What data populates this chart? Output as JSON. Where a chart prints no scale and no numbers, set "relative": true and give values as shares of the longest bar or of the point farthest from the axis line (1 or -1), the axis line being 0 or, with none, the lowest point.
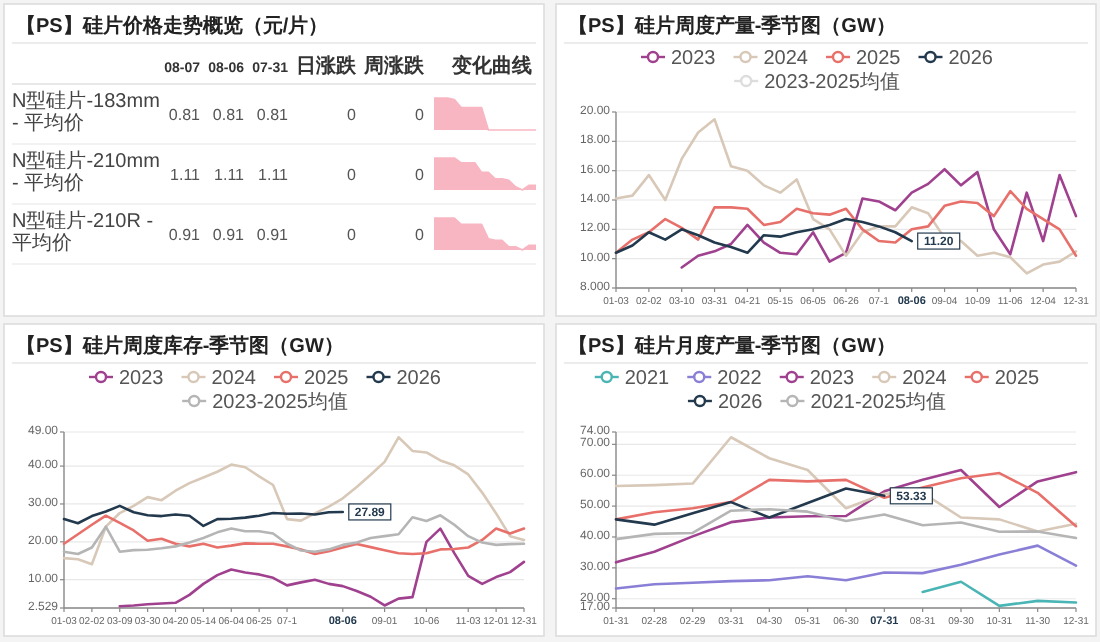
{
  "chart_data": [
    {
      "type": "other",
      "title": "【PS】硅片价格走势概览（元/片）",
      "categories": [
        "N型硅片-183mm - 平均价",
        "N型硅片-210mm - 平均价",
        "N型硅片-210R - 平均价"
      ],
      "series": [
        {
          "name": "08-07",
          "values": [
            0.81,
            1.11,
            0.91
          ]
        },
        {
          "name": "08-06",
          "values": [
            0.81,
            1.11,
            0.91
          ]
        },
        {
          "name": "07-31",
          "values": [
            0.81,
            1.11,
            0.91
          ]
        },
        {
          "name": "日涨跌",
          "values": [
            0,
            0,
            0
          ]
        },
        {
          "name": "周涨跌",
          "values": [
            0,
            0,
            0
          ]
        }
      ],
      "annotations": [
        "变化曲线"
      ],
      "data_labels": true
    },
    {
      "type": "area",
      "relative": true,
      "color": "#f7b6c2",
      "categories": [
        null,
        null,
        null,
        null,
        null,
        null,
        null,
        null,
        null,
        null,
        null,
        null,
        null,
        null,
        null,
        null
      ],
      "values": [
        1,
        1,
        1,
        0.95,
        0.7,
        0.7,
        0.7,
        0.7,
        0,
        0,
        0,
        0,
        0,
        0,
        0,
        0
      ]
    },
    {
      "type": "area",
      "relative": true,
      "color": "#f7b6c2",
      "categories": [
        null,
        null,
        null,
        null,
        null,
        null,
        null,
        null,
        null,
        null,
        null,
        null,
        null,
        null,
        null,
        null
      ],
      "values": [
        1,
        1,
        1,
        1,
        0.85,
        0.85,
        0.85,
        0.55,
        0.55,
        0.35,
        0.35,
        0.3,
        0.1,
        0,
        0.15,
        0.15
      ]
    },
    {
      "type": "area",
      "relative": true,
      "color": "#f7b6c2",
      "categories": [
        null,
        null,
        null,
        null,
        null,
        null,
        null,
        null,
        null,
        null,
        null,
        null,
        null,
        null,
        null,
        null
      ],
      "values": [
        1,
        1,
        1,
        1,
        0.8,
        0.8,
        0.8,
        0.8,
        0.35,
        0.3,
        0.3,
        0.1,
        0.1,
        0,
        0.15,
        0.15
      ]
    },
    {
      "type": "line",
      "title": "【PS】硅片周度产量-季节图（GW）",
      "grid": "y",
      "legend": "top",
      "categories": [
        "01-03",
        null,
        "02-02",
        null,
        "03-10",
        null,
        "03-31",
        null,
        "04-21",
        null,
        "05-15",
        null,
        "06-05",
        null,
        "06-26",
        null,
        "07-1",
        null,
        "08-06",
        null,
        "09-04",
        null,
        "10-09",
        null,
        "11-06",
        null,
        "12-04",
        null,
        "12-31"
      ],
      "ylim": [
        8,
        20
      ],
      "yticks": [
        {
          "value": 8,
          "label": "8.000"
        },
        {
          "value": 10,
          "label": "10.00"
        },
        {
          "value": 12,
          "label": "12.00"
        },
        {
          "value": 14,
          "label": "14.00"
        },
        {
          "value": 16,
          "label": "16.00"
        },
        {
          "value": 18,
          "label": "18.00"
        },
        {
          "value": 20,
          "label": "20.00"
        }
      ],
      "series": [
        {
          "name": "2023",
          "color": "#a0418f",
          "values": [
            null,
            null,
            null,
            null,
            9.4,
            10.2,
            10.5,
            11.0,
            12.3,
            11.1,
            10.4,
            10.3,
            11.8,
            9.8,
            10.4,
            14.1,
            13.9,
            13.3,
            14.5,
            15.1,
            16.1,
            15.0,
            15.9,
            12.0,
            10.3,
            14.5,
            11.2,
            15.7,
            12.9
          ]
        },
        {
          "name": "2024",
          "color": "#d8c8b8",
          "values": [
            14.1,
            14.3,
            15.7,
            14.0,
            16.8,
            18.6,
            19.5,
            16.3,
            16.0,
            15.0,
            14.5,
            15.4,
            12.7,
            12.0,
            10.2,
            11.8,
            12.2,
            12.2,
            13.5,
            13.1,
            11.4,
            11.2,
            10.2,
            10.4,
            10.1,
            9.0,
            9.6,
            9.8,
            10.5
          ]
        },
        {
          "name": "2025",
          "color": "#e8706a",
          "values": [
            10.4,
            11.3,
            11.8,
            12.7,
            12.1,
            11.3,
            13.5,
            13.5,
            13.4,
            12.3,
            12.5,
            13.4,
            13.1,
            13.0,
            13.4,
            12.0,
            11.2,
            11.1,
            12.0,
            12.2,
            13.6,
            13.9,
            13.8,
            12.9,
            14.6,
            13.4,
            12.7,
            12.0,
            10.2
          ]
        },
        {
          "name": "2026",
          "color": "#23394d",
          "values": [
            10.4,
            10.9,
            11.8,
            11.3,
            12.0,
            11.6,
            11.1,
            10.8,
            10.4,
            11.6,
            11.5,
            11.8,
            12.0,
            12.3,
            12.7,
            12.5,
            12.2,
            11.8,
            11.2,
            null,
            null,
            null,
            null,
            null,
            null,
            null,
            null,
            null,
            null
          ]
        },
        {
          "name": "2023-2025均值",
          "color": "#dddddd",
          "values": [
            null,
            null,
            null,
            null,
            null,
            null,
            null,
            null,
            null,
            null,
            null,
            null,
            null,
            null,
            null,
            null,
            null,
            null,
            null,
            null,
            null,
            null,
            null,
            null,
            null,
            null,
            null,
            null,
            null
          ]
        }
      ],
      "annotations": [
        {
          "text": "11.20",
          "x": "08-06",
          "y": 11.2
        }
      ]
    },
    {
      "type": "line",
      "title": "【PS】硅片周度库存-季节图（GW）",
      "grid": "y",
      "legend": "top",
      "categories": [
        "01-03",
        null,
        "02-02",
        null,
        "03-09",
        null,
        "03-30",
        null,
        "04-20",
        null,
        "05-14",
        null,
        "06-04",
        null,
        "06-25",
        null,
        "07-1",
        null,
        null,
        null,
        "08-06",
        null,
        null,
        "09-01",
        null,
        null,
        "10-06",
        null,
        null,
        "11-03",
        null,
        "12-01",
        null,
        "12-31"
      ],
      "ylim": [
        2.529,
        49
      ],
      "yticks": [
        {
          "value": 2.529,
          "label": "2.529"
        },
        {
          "value": 10,
          "label": "10.00"
        },
        {
          "value": 20,
          "label": "20.00"
        },
        {
          "value": 30,
          "label": "30.00"
        },
        {
          "value": 40,
          "label": "40.00"
        },
        {
          "value": 49,
          "label": "49.00"
        }
      ],
      "series": [
        {
          "name": "2023",
          "color": "#a0418f",
          "values": [
            null,
            null,
            null,
            null,
            3.0,
            3.2,
            3.5,
            3.7,
            3.9,
            6.0,
            8.9,
            11.2,
            12.7,
            11.9,
            11.4,
            10.5,
            8.5,
            9.3,
            10.0,
            8.9,
            8.3,
            7.0,
            5.5,
            3.2,
            5.0,
            5.4,
            20.0,
            23.5,
            17.0,
            11.0,
            8.9,
            10.7,
            12.0,
            14.7
          ]
        },
        {
          "name": "2024",
          "color": "#d8c8b8",
          "values": [
            15.7,
            15.4,
            14.1,
            24.0,
            27.6,
            29.5,
            31.8,
            31.0,
            33.5,
            35.5,
            37.0,
            38.5,
            40.4,
            39.7,
            37.3,
            35.0,
            26.0,
            25.6,
            27.5,
            29.3,
            31.5,
            34.5,
            37.7,
            41.1,
            47.6,
            44.0,
            43.6,
            41.5,
            40.2,
            37.8,
            33.0,
            27.5,
            21.5,
            20.5
          ]
        },
        {
          "name": "2025",
          "color": "#e8706a",
          "values": [
            19.5,
            22.0,
            24.5,
            26.9,
            25.0,
            23.0,
            20.3,
            20.8,
            19.5,
            18.8,
            19.5,
            18.5,
            19.0,
            19.6,
            19.5,
            19.5,
            18.8,
            18.0,
            16.8,
            17.5,
            18.5,
            19.4,
            18.6,
            17.8,
            17.0,
            16.8,
            17.0,
            18.0,
            18.1,
            18.5,
            20.5,
            23.5,
            22.2,
            23.5
          ]
        },
        {
          "name": "2026",
          "color": "#23394d",
          "values": [
            26.0,
            24.9,
            26.8,
            28.0,
            29.5,
            27.8,
            27.0,
            26.8,
            27.2,
            26.9,
            24.2,
            26.0,
            26.1,
            26.4,
            26.9,
            27.6,
            27.4,
            27.5,
            27.2,
            27.8,
            27.89,
            null,
            null,
            null,
            null,
            null,
            null,
            null,
            null,
            null,
            null,
            null,
            null,
            null
          ]
        },
        {
          "name": "2023-2025均值",
          "color": "#b5b5b5",
          "values": [
            17.4,
            16.8,
            18.5,
            24.0,
            17.4,
            17.8,
            17.9,
            18.3,
            18.8,
            19.8,
            21.0,
            22.5,
            23.5,
            22.8,
            22.8,
            22.2,
            19.5,
            17.7,
            17.4,
            18.0,
            19.2,
            19.8,
            21.0,
            21.5,
            22.0,
            26.5,
            25.5,
            27.0,
            24.5,
            21.5,
            19.8,
            19.2,
            19.4,
            19.5
          ]
        }
      ],
      "annotations": [
        {
          "text": "27.89",
          "x": "08-06",
          "y": 27.89
        }
      ]
    },
    {
      "type": "line",
      "title": "【PS】硅片月度产量-季节图（GW）",
      "grid": "y",
      "legend": "top",
      "categories": [
        "01-31",
        "02-28",
        "02-29",
        "03-31",
        "04-30",
        "05-31",
        "06-30",
        "07-31",
        "08-31",
        "09-30",
        "10-31",
        "11-30",
        "12-31"
      ],
      "ylim": [
        17,
        74
      ],
      "yticks": [
        {
          "value": 17,
          "label": "17.00"
        },
        {
          "value": 20,
          "label": "20.00"
        },
        {
          "value": 30,
          "label": "30.00"
        },
        {
          "value": 40,
          "label": "40.00"
        },
        {
          "value": 50,
          "label": "50.00"
        },
        {
          "value": 60,
          "label": "60.00"
        },
        {
          "value": 70,
          "label": "70.00"
        },
        {
          "value": 74,
          "label": "74.00"
        }
      ],
      "series": [
        {
          "name": "2021",
          "color": "#4bb5b5",
          "values": [
            null,
            null,
            null,
            null,
            null,
            null,
            null,
            null,
            22.2,
            25.5,
            17.7,
            19.3,
            18.8
          ]
        },
        {
          "name": "2022",
          "color": "#8a7fd6",
          "values": [
            23.3,
            24.7,
            25.2,
            25.7,
            26.0,
            27.3,
            26.0,
            28.5,
            28.3,
            31.0,
            34.3,
            37.2,
            30.7
          ]
        },
        {
          "name": "2023",
          "color": "#a0418f",
          "values": [
            31.8,
            35.2,
            40.2,
            44.8,
            46.3,
            46.7,
            46.8,
            54.8,
            58.5,
            61.7,
            49.7,
            58.0,
            61.0
          ]
        },
        {
          "name": "2024",
          "color": "#d8c8b8",
          "values": [
            56.5,
            56.8,
            57.3,
            72.3,
            65.5,
            61.7,
            49.3,
            54.0,
            54.3,
            46.3,
            45.7,
            41.8,
            44.3
          ]
        },
        {
          "name": "2025",
          "color": "#e8706a",
          "values": [
            45.7,
            48.0,
            49.3,
            51.3,
            58.5,
            58.0,
            58.5,
            52.7,
            56.0,
            59.0,
            60.7,
            54.3,
            43.5
          ]
        },
        {
          "name": "2026",
          "color": "#23394d",
          "values": [
            45.7,
            44.0,
            47.7,
            51.3,
            46.3,
            51.0,
            55.7,
            53.33,
            null,
            null,
            null,
            null,
            null
          ]
        },
        {
          "name": "2021-2025均值",
          "color": "#b5b5b5",
          "values": [
            39.3,
            41.0,
            41.3,
            48.5,
            49.0,
            48.2,
            45.2,
            47.3,
            43.8,
            44.7,
            41.7,
            41.8,
            39.7
          ]
        }
      ],
      "annotations": [
        {
          "text": "53.33",
          "x": "07-31",
          "y": 53.33
        }
      ]
    }
  ]
}
